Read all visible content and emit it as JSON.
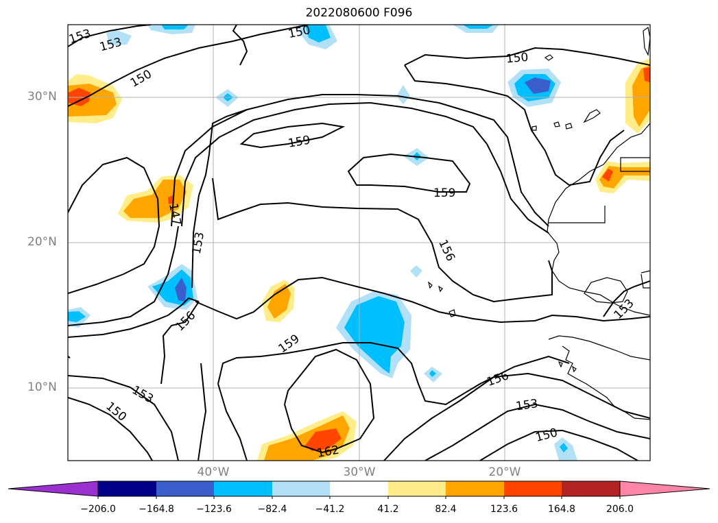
{
  "title": "2022080600 F096",
  "lat_ticks": [
    "30°N",
    "20°N",
    "10°N"
  ],
  "lon_ticks": [
    "40°W",
    "30°W",
    "20°W"
  ],
  "contour_labels": [
    "153",
    "153",
    "150",
    "150",
    "150",
    "159",
    "159",
    "147",
    "153",
    "156",
    "156",
    "159",
    "156",
    "153",
    "150",
    "153",
    "150",
    "153",
    "162"
  ],
  "colorbar": {
    "labels": [
      "−206.0",
      "−164.8",
      "−123.6",
      "−82.4",
      "−41.2",
      "41.2",
      "82.4",
      "123.6",
      "164.8",
      "206.0"
    ],
    "colors": [
      "#9b30d0",
      "#00008b",
      "#3a5fcd",
      "#00bfff",
      "#b2e0f7",
      "#ffffff",
      "#ffed8a",
      "#ffa500",
      "#ff4500",
      "#b22222",
      "#ff85a8"
    ]
  }
}
